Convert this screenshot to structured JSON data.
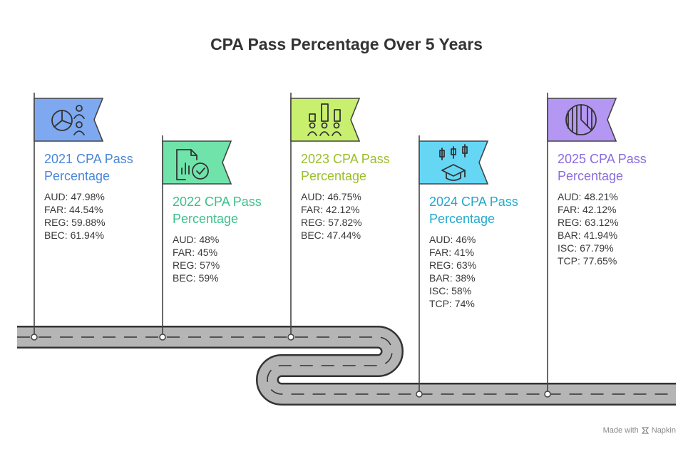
{
  "title": "CPA Pass Percentage Over 5 Years",
  "milestones": [
    {
      "title": "2021 CPA Pass Percentage",
      "color": "#4a86d8",
      "flag_color": "#7ea9f1",
      "icon": "pie-chart-people-icon",
      "items": [
        "AUD: 47.98%",
        "FAR: 44.54%",
        "REG: 59.88%",
        "BEC: 61.94%"
      ]
    },
    {
      "title": "2022 CPA Pass Percentage",
      "color": "#3cc08a",
      "flag_color": "#6fe3aa",
      "icon": "document-chart-check-icon",
      "items": [
        "AUD: 48%",
        "FAR: 45%",
        "REG: 57%",
        "BEC: 59%"
      ]
    },
    {
      "title": "2023 CPA Pass Percentage",
      "color": "#9bbf2a",
      "flag_color": "#c8f06e",
      "icon": "bar-chart-audience-icon",
      "items": [
        "AUD: 46.75%",
        "FAR: 42.12%",
        "REG: 57.82%",
        "BEC: 47.44%"
      ]
    },
    {
      "title": "2024 CPA Pass Percentage",
      "color": "#22a8cc",
      "flag_color": "#66d6f5",
      "icon": "candlestick-graduation-cap-icon",
      "items": [
        "AUD: 46%",
        "FAR: 41%",
        "REG: 63%",
        "BAR: 38%",
        "ISC: 58%",
        "TCP: 74%"
      ]
    },
    {
      "title": "2025 CPA Pass Percentage",
      "color": "#8a6be0",
      "flag_color": "#b397f2",
      "icon": "striped-pie-icon",
      "items": [
        "AUD: 48.21%",
        "FAR: 42.12%",
        "REG: 63.12%",
        "BAR: 41.94%",
        "ISC: 67.79%",
        "TCP: 77.65%"
      ]
    }
  ],
  "footer": {
    "made_with": "Made with",
    "brand": "Napkin"
  },
  "road_color": "#b5b5b5"
}
